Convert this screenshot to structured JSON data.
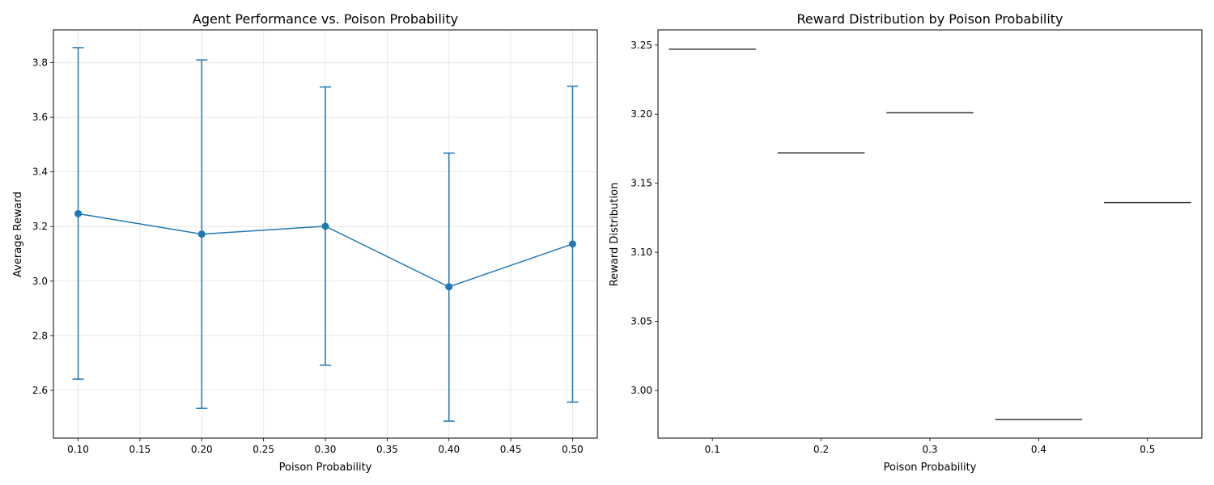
{
  "chart_data": [
    {
      "type": "line",
      "title": "Agent Performance vs. Poison Probability",
      "xlabel": "Poison Probability",
      "ylabel": "Average Reward",
      "xlim": [
        0.08,
        0.52
      ],
      "ylim": [
        2.425,
        3.92
      ],
      "xticks": [
        "0.10",
        "0.15",
        "0.20",
        "0.25",
        "0.30",
        "0.35",
        "0.40",
        "0.45",
        "0.50"
      ],
      "yticks": [
        "2.6",
        "2.8",
        "3.0",
        "3.2",
        "3.4",
        "3.6",
        "3.8"
      ],
      "grid": true,
      "color": "#1f77b4",
      "series": [
        {
          "x": [
            0.1,
            0.2,
            0.3,
            0.4,
            0.5
          ],
          "y": [
            3.247,
            3.172,
            3.201,
            2.979,
            3.136
          ],
          "err_low": [
            2.641,
            2.534,
            2.692,
            2.487,
            2.557
          ],
          "err_high": [
            3.855,
            3.81,
            3.711,
            3.469,
            3.714
          ]
        }
      ]
    },
    {
      "type": "box",
      "title": "Reward Distribution by Poison Probability",
      "xlabel": "Poison Probability",
      "ylabel": "Reward Distribution",
      "ylim": [
        2.9655,
        3.261
      ],
      "categories": [
        "0.1",
        "0.2",
        "0.3",
        "0.4",
        "0.5"
      ],
      "yticks": [
        "3.00",
        "3.05",
        "3.10",
        "3.15",
        "3.20",
        "3.25"
      ],
      "grid": false,
      "color": "#3a3a3a",
      "values": [
        3.247,
        3.172,
        3.201,
        2.979,
        3.136
      ]
    }
  ]
}
